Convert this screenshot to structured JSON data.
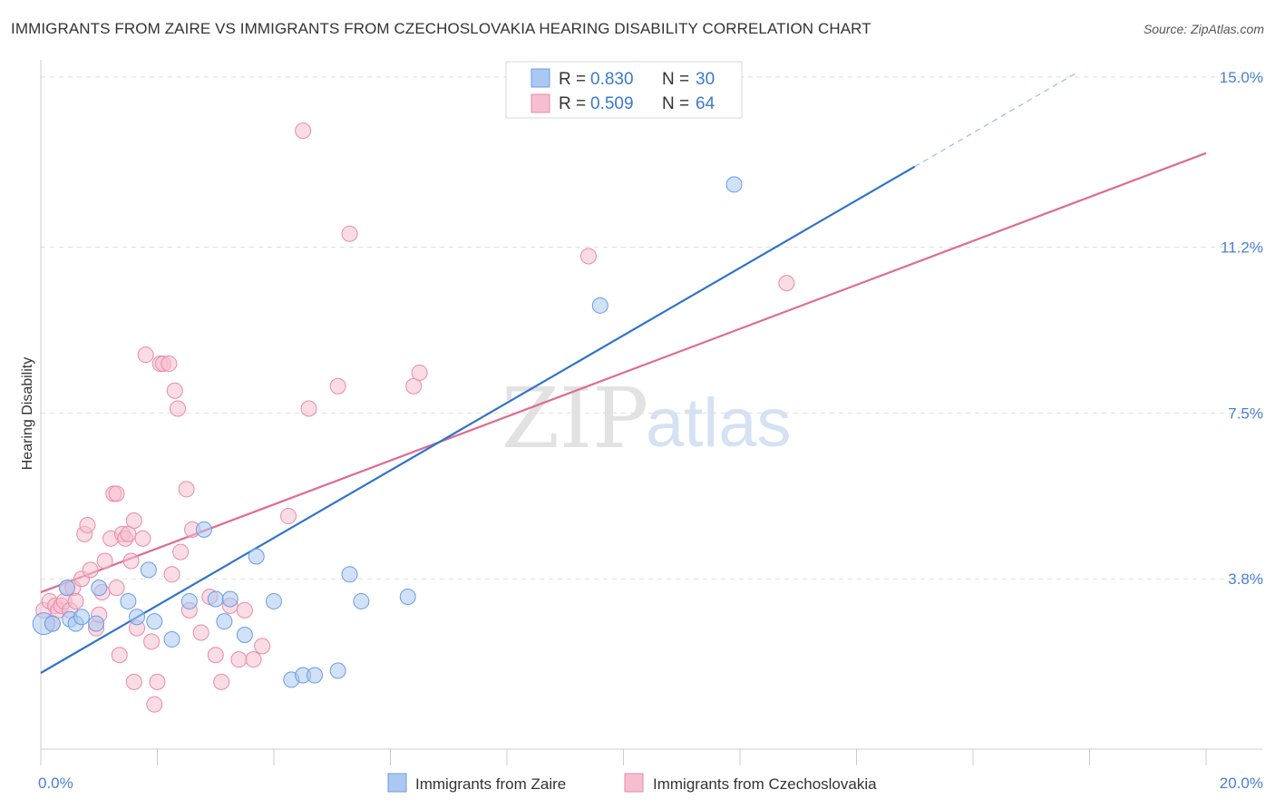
{
  "title": "IMMIGRANTS FROM ZAIRE VS IMMIGRANTS FROM CZECHOSLOVAKIA HEARING DISABILITY CORRELATION CHART",
  "source": "Source: ZipAtlas.com",
  "watermark": {
    "zip": "ZIP",
    "atlas": "atlas"
  },
  "colors": {
    "blue_fill": "#aac8f2",
    "blue_stroke": "#6a9ee0",
    "blue_line": "#2f73c9",
    "pink_fill": "#f6bfd0",
    "pink_stroke": "#e98aa9",
    "pink_line": "#e06a93",
    "axis_text": "#4a7fd4",
    "grid": "#dddddd"
  },
  "legend": {
    "rows": [
      {
        "r_label": "R =",
        "r_value": "0.830",
        "n_label": "N =",
        "n_value": "30"
      },
      {
        "r_label": "R =",
        "r_value": "0.509",
        "n_label": "N =",
        "n_value": "64"
      }
    ]
  },
  "bottom_legend": [
    "Immigrants from Zaire",
    "Immigrants from Czechoslovakia"
  ],
  "chart_data": {
    "type": "scatter",
    "title": "IMMIGRANTS FROM ZAIRE VS IMMIGRANTS FROM CZECHOSLOVAKIA HEARING DISABILITY CORRELATION CHART",
    "xlabel": "",
    "ylabel": "Hearing Disability",
    "xlim": [
      0,
      20
    ],
    "ylim": [
      0,
      15.3
    ],
    "x_tick_labels": [
      "0.0%",
      "20.0%"
    ],
    "y_ticks": [
      3.8,
      7.5,
      11.2,
      15.0
    ],
    "y_tick_labels": [
      "3.8%",
      "7.5%",
      "11.2%",
      "15.0%"
    ],
    "series": [
      {
        "name": "Immigrants from Zaire",
        "R": 0.83,
        "N": 30,
        "trend": {
          "x0": 0,
          "y0": 1.7,
          "x1": 15,
          "y1": 13.0,
          "dashed_to_x": 17.8
        },
        "points": [
          [
            0.05,
            2.8
          ],
          [
            0.2,
            2.8
          ],
          [
            0.45,
            3.6
          ],
          [
            0.5,
            2.9
          ],
          [
            0.6,
            2.8
          ],
          [
            0.7,
            2.95
          ],
          [
            0.95,
            2.8
          ],
          [
            1.0,
            3.6
          ],
          [
            1.5,
            3.3
          ],
          [
            1.65,
            2.95
          ],
          [
            1.85,
            4.0
          ],
          [
            1.95,
            2.85
          ],
          [
            2.25,
            2.45
          ],
          [
            2.55,
            3.3
          ],
          [
            2.8,
            4.9
          ],
          [
            3.0,
            3.35
          ],
          [
            3.15,
            2.85
          ],
          [
            3.25,
            3.35
          ],
          [
            3.5,
            2.55
          ],
          [
            3.7,
            4.3
          ],
          [
            4.0,
            3.3
          ],
          [
            4.3,
            1.55
          ],
          [
            4.5,
            1.65
          ],
          [
            4.7,
            1.65
          ],
          [
            5.1,
            1.75
          ],
          [
            5.3,
            3.9
          ],
          [
            5.5,
            3.3
          ],
          [
            6.3,
            3.4
          ],
          [
            9.6,
            9.9
          ],
          [
            11.9,
            12.6
          ]
        ]
      },
      {
        "name": "Immigrants from Czechoslovakia",
        "R": 0.509,
        "N": 64,
        "trend": {
          "x0": 0,
          "y0": 3.5,
          "x1": 20,
          "y1": 13.3
        },
        "points": [
          [
            0.05,
            3.1
          ],
          [
            0.15,
            3.3
          ],
          [
            0.2,
            2.8
          ],
          [
            0.25,
            3.2
          ],
          [
            0.3,
            3.1
          ],
          [
            0.35,
            3.2
          ],
          [
            0.4,
            3.3
          ],
          [
            0.45,
            3.6
          ],
          [
            0.5,
            3.1
          ],
          [
            0.55,
            3.6
          ],
          [
            0.6,
            3.3
          ],
          [
            0.7,
            3.8
          ],
          [
            0.75,
            4.8
          ],
          [
            0.8,
            5.0
          ],
          [
            0.85,
            4.0
          ],
          [
            0.95,
            2.7
          ],
          [
            1.0,
            3.0
          ],
          [
            1.05,
            3.5
          ],
          [
            1.1,
            4.2
          ],
          [
            1.2,
            4.7
          ],
          [
            1.25,
            5.7
          ],
          [
            1.3,
            3.6
          ],
          [
            1.3,
            5.7
          ],
          [
            1.35,
            2.1
          ],
          [
            1.4,
            4.8
          ],
          [
            1.45,
            4.7
          ],
          [
            1.5,
            4.8
          ],
          [
            1.55,
            4.2
          ],
          [
            1.6,
            5.1
          ],
          [
            1.6,
            1.5
          ],
          [
            1.65,
            2.7
          ],
          [
            1.75,
            4.7
          ],
          [
            1.8,
            8.8
          ],
          [
            1.9,
            2.4
          ],
          [
            1.95,
            1.0
          ],
          [
            2.0,
            1.5
          ],
          [
            2.05,
            8.6
          ],
          [
            2.1,
            8.6
          ],
          [
            2.2,
            8.6
          ],
          [
            2.25,
            3.9
          ],
          [
            2.3,
            8.0
          ],
          [
            2.35,
            7.6
          ],
          [
            2.4,
            4.4
          ],
          [
            2.5,
            5.8
          ],
          [
            2.55,
            3.1
          ],
          [
            2.6,
            4.9
          ],
          [
            2.75,
            2.6
          ],
          [
            2.9,
            3.4
          ],
          [
            3.0,
            2.1
          ],
          [
            3.1,
            1.5
          ],
          [
            3.25,
            3.2
          ],
          [
            3.4,
            2.0
          ],
          [
            3.5,
            3.1
          ],
          [
            3.65,
            2.0
          ],
          [
            3.8,
            2.3
          ],
          [
            4.25,
            5.2
          ],
          [
            4.5,
            13.8
          ],
          [
            4.6,
            7.6
          ],
          [
            5.1,
            8.1
          ],
          [
            5.3,
            11.5
          ],
          [
            6.4,
            8.1
          ],
          [
            6.5,
            8.4
          ],
          [
            9.4,
            11.0
          ],
          [
            12.8,
            10.4
          ]
        ]
      }
    ]
  }
}
